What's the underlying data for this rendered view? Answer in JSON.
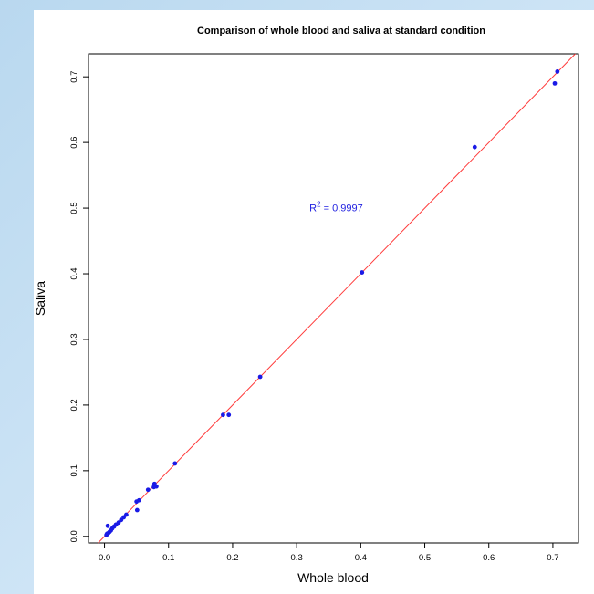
{
  "chart_data": {
    "type": "scatter",
    "title": "Comparison of whole blood and saliva at standard condition",
    "xlabel": "Whole blood",
    "ylabel": "Saliva",
    "xlim": [
      -0.025,
      0.74
    ],
    "ylim": [
      -0.01,
      0.735
    ],
    "xticks": [
      "0.0",
      "0.1",
      "0.2",
      "0.3",
      "0.4",
      "0.5",
      "0.6",
      "0.7"
    ],
    "xtick_values": [
      0.0,
      0.1,
      0.2,
      0.3,
      0.4,
      0.5,
      0.6,
      0.7
    ],
    "yticks": [
      "0.0",
      "0.1",
      "0.2",
      "0.3",
      "0.4",
      "0.5",
      "0.6",
      "0.7"
    ],
    "ytick_values": [
      0.0,
      0.1,
      0.2,
      0.3,
      0.4,
      0.5,
      0.6,
      0.7
    ],
    "annotation": {
      "text_prefix": "R",
      "superscript": "2",
      "text_suffix": " = 0.9997",
      "x": 0.32,
      "y": 0.495
    },
    "fit_line": {
      "intercept": 0.0,
      "slope": 1.0,
      "color": "#ff3b3b"
    },
    "point_color": "#1a1ae6",
    "points": [
      {
        "x": 0.003,
        "y": 0.002
      },
      {
        "x": 0.004,
        "y": 0.004
      },
      {
        "x": 0.006,
        "y": 0.005
      },
      {
        "x": 0.005,
        "y": 0.016
      },
      {
        "x": 0.008,
        "y": 0.007
      },
      {
        "x": 0.01,
        "y": 0.009
      },
      {
        "x": 0.012,
        "y": 0.012
      },
      {
        "x": 0.015,
        "y": 0.015
      },
      {
        "x": 0.018,
        "y": 0.018
      },
      {
        "x": 0.022,
        "y": 0.021
      },
      {
        "x": 0.026,
        "y": 0.025
      },
      {
        "x": 0.03,
        "y": 0.029
      },
      {
        "x": 0.034,
        "y": 0.033
      },
      {
        "x": 0.05,
        "y": 0.053
      },
      {
        "x": 0.054,
        "y": 0.055
      },
      {
        "x": 0.051,
        "y": 0.04
      },
      {
        "x": 0.068,
        "y": 0.071
      },
      {
        "x": 0.077,
        "y": 0.075
      },
      {
        "x": 0.078,
        "y": 0.08
      },
      {
        "x": 0.081,
        "y": 0.076
      },
      {
        "x": 0.11,
        "y": 0.111
      },
      {
        "x": 0.185,
        "y": 0.185
      },
      {
        "x": 0.194,
        "y": 0.185
      },
      {
        "x": 0.243,
        "y": 0.243
      },
      {
        "x": 0.402,
        "y": 0.402
      },
      {
        "x": 0.578,
        "y": 0.593
      },
      {
        "x": 0.703,
        "y": 0.69
      },
      {
        "x": 0.707,
        "y": 0.708
      }
    ]
  }
}
